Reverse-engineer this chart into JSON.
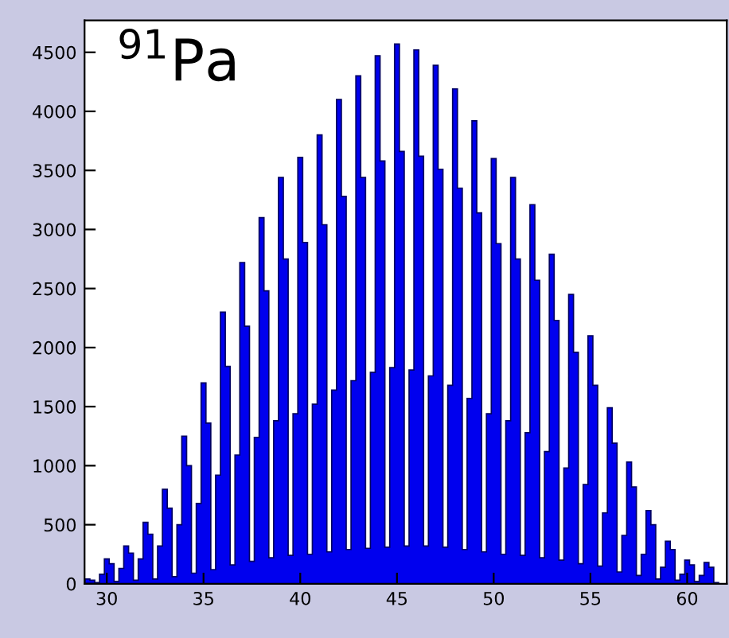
{
  "chart_data": {
    "type": "histogram",
    "title": "$^{91}$Pa",
    "color": "#0000ee",
    "bins": [
      28.875,
      29.125,
      29.375,
      29.625,
      29.875,
      30.125,
      30.375,
      30.625,
      30.875,
      31.125,
      31.375,
      31.625,
      31.875,
      32.125,
      32.375,
      32.625,
      32.875,
      33.125,
      33.375,
      33.625,
      33.875,
      34.125,
      34.375,
      34.625,
      34.875,
      35.125,
      35.375,
      35.625,
      35.875,
      36.125,
      36.375,
      36.625,
      36.875,
      37.125,
      37.375,
      37.625,
      37.875,
      38.125,
      38.375,
      38.625,
      38.875,
      39.125,
      39.375,
      39.625,
      39.875,
      40.125,
      40.375,
      40.625,
      40.875,
      41.125,
      41.375,
      41.625,
      41.875,
      42.125,
      42.375,
      42.625,
      42.875,
      43.125,
      43.375,
      43.625,
      43.875,
      44.125,
      44.375,
      44.625,
      44.875,
      45.125,
      45.375,
      45.625,
      45.875,
      46.125,
      46.375,
      46.625,
      46.875,
      47.125,
      47.375,
      47.625,
      47.875,
      48.125,
      48.375,
      48.625,
      48.875,
      49.125,
      49.375,
      49.625,
      49.875,
      50.125,
      50.375,
      50.625,
      50.875,
      51.125,
      51.375,
      51.625,
      51.875,
      52.125,
      52.375,
      52.625,
      52.875,
      53.125,
      53.375,
      53.625,
      53.875,
      54.125,
      54.375,
      54.625,
      54.875,
      55.125,
      55.375,
      55.625,
      55.875,
      56.125,
      56.375,
      56.625,
      56.875,
      57.125,
      57.375,
      57.625,
      57.875,
      58.125,
      58.375,
      58.625,
      58.875,
      59.125,
      59.375,
      59.625,
      59.875,
      60.125,
      60.375,
      60.625,
      60.875,
      61.125,
      61.375,
      61.625,
      61.875
    ],
    "values": [
      40,
      30,
      10,
      80,
      210,
      170,
      20,
      130,
      320,
      260,
      30,
      210,
      520,
      420,
      40,
      320,
      800,
      640,
      60,
      500,
      1250,
      1000,
      90,
      680,
      1700,
      1360,
      120,
      920,
      2300,
      1840,
      160,
      1090,
      2720,
      2180,
      190,
      1240,
      3100,
      2480,
      220,
      1380,
      3440,
      2750,
      240,
      1440,
      3610,
      2890,
      250,
      1520,
      3800,
      3040,
      270,
      1640,
      4100,
      3280,
      290,
      1720,
      4300,
      3440,
      300,
      1790,
      4470,
      3580,
      310,
      1830,
      4570,
      3660,
      320,
      1810,
      4520,
      3620,
      320,
      1760,
      4390,
      3510,
      310,
      1680,
      4190,
      3350,
      290,
      1570,
      3920,
      3140,
      270,
      1440,
      3600,
      2880,
      250,
      1380,
      3440,
      2750,
      240,
      1280,
      3210,
      2570,
      220,
      1120,
      2790,
      2230,
      200,
      980,
      2450,
      1960,
      170,
      840,
      2100,
      1680,
      150,
      600,
      1490,
      1190,
      100,
      410,
      1030,
      820,
      70,
      250,
      620,
      500,
      40,
      140,
      360,
      290,
      30,
      80,
      200,
      160,
      20,
      70,
      180,
      140,
      10,
      0
    ],
    "xlim": [
      28.85,
      62.05
    ],
    "ylim": [
      0,
      4770
    ],
    "xticks": [
      30,
      35,
      40,
      45,
      50,
      55,
      60
    ],
    "yticks": [
      0,
      500,
      1000,
      1500,
      2000,
      2500,
      3000,
      3500,
      4000,
      4500
    ],
    "grid": false,
    "legend": false
  }
}
